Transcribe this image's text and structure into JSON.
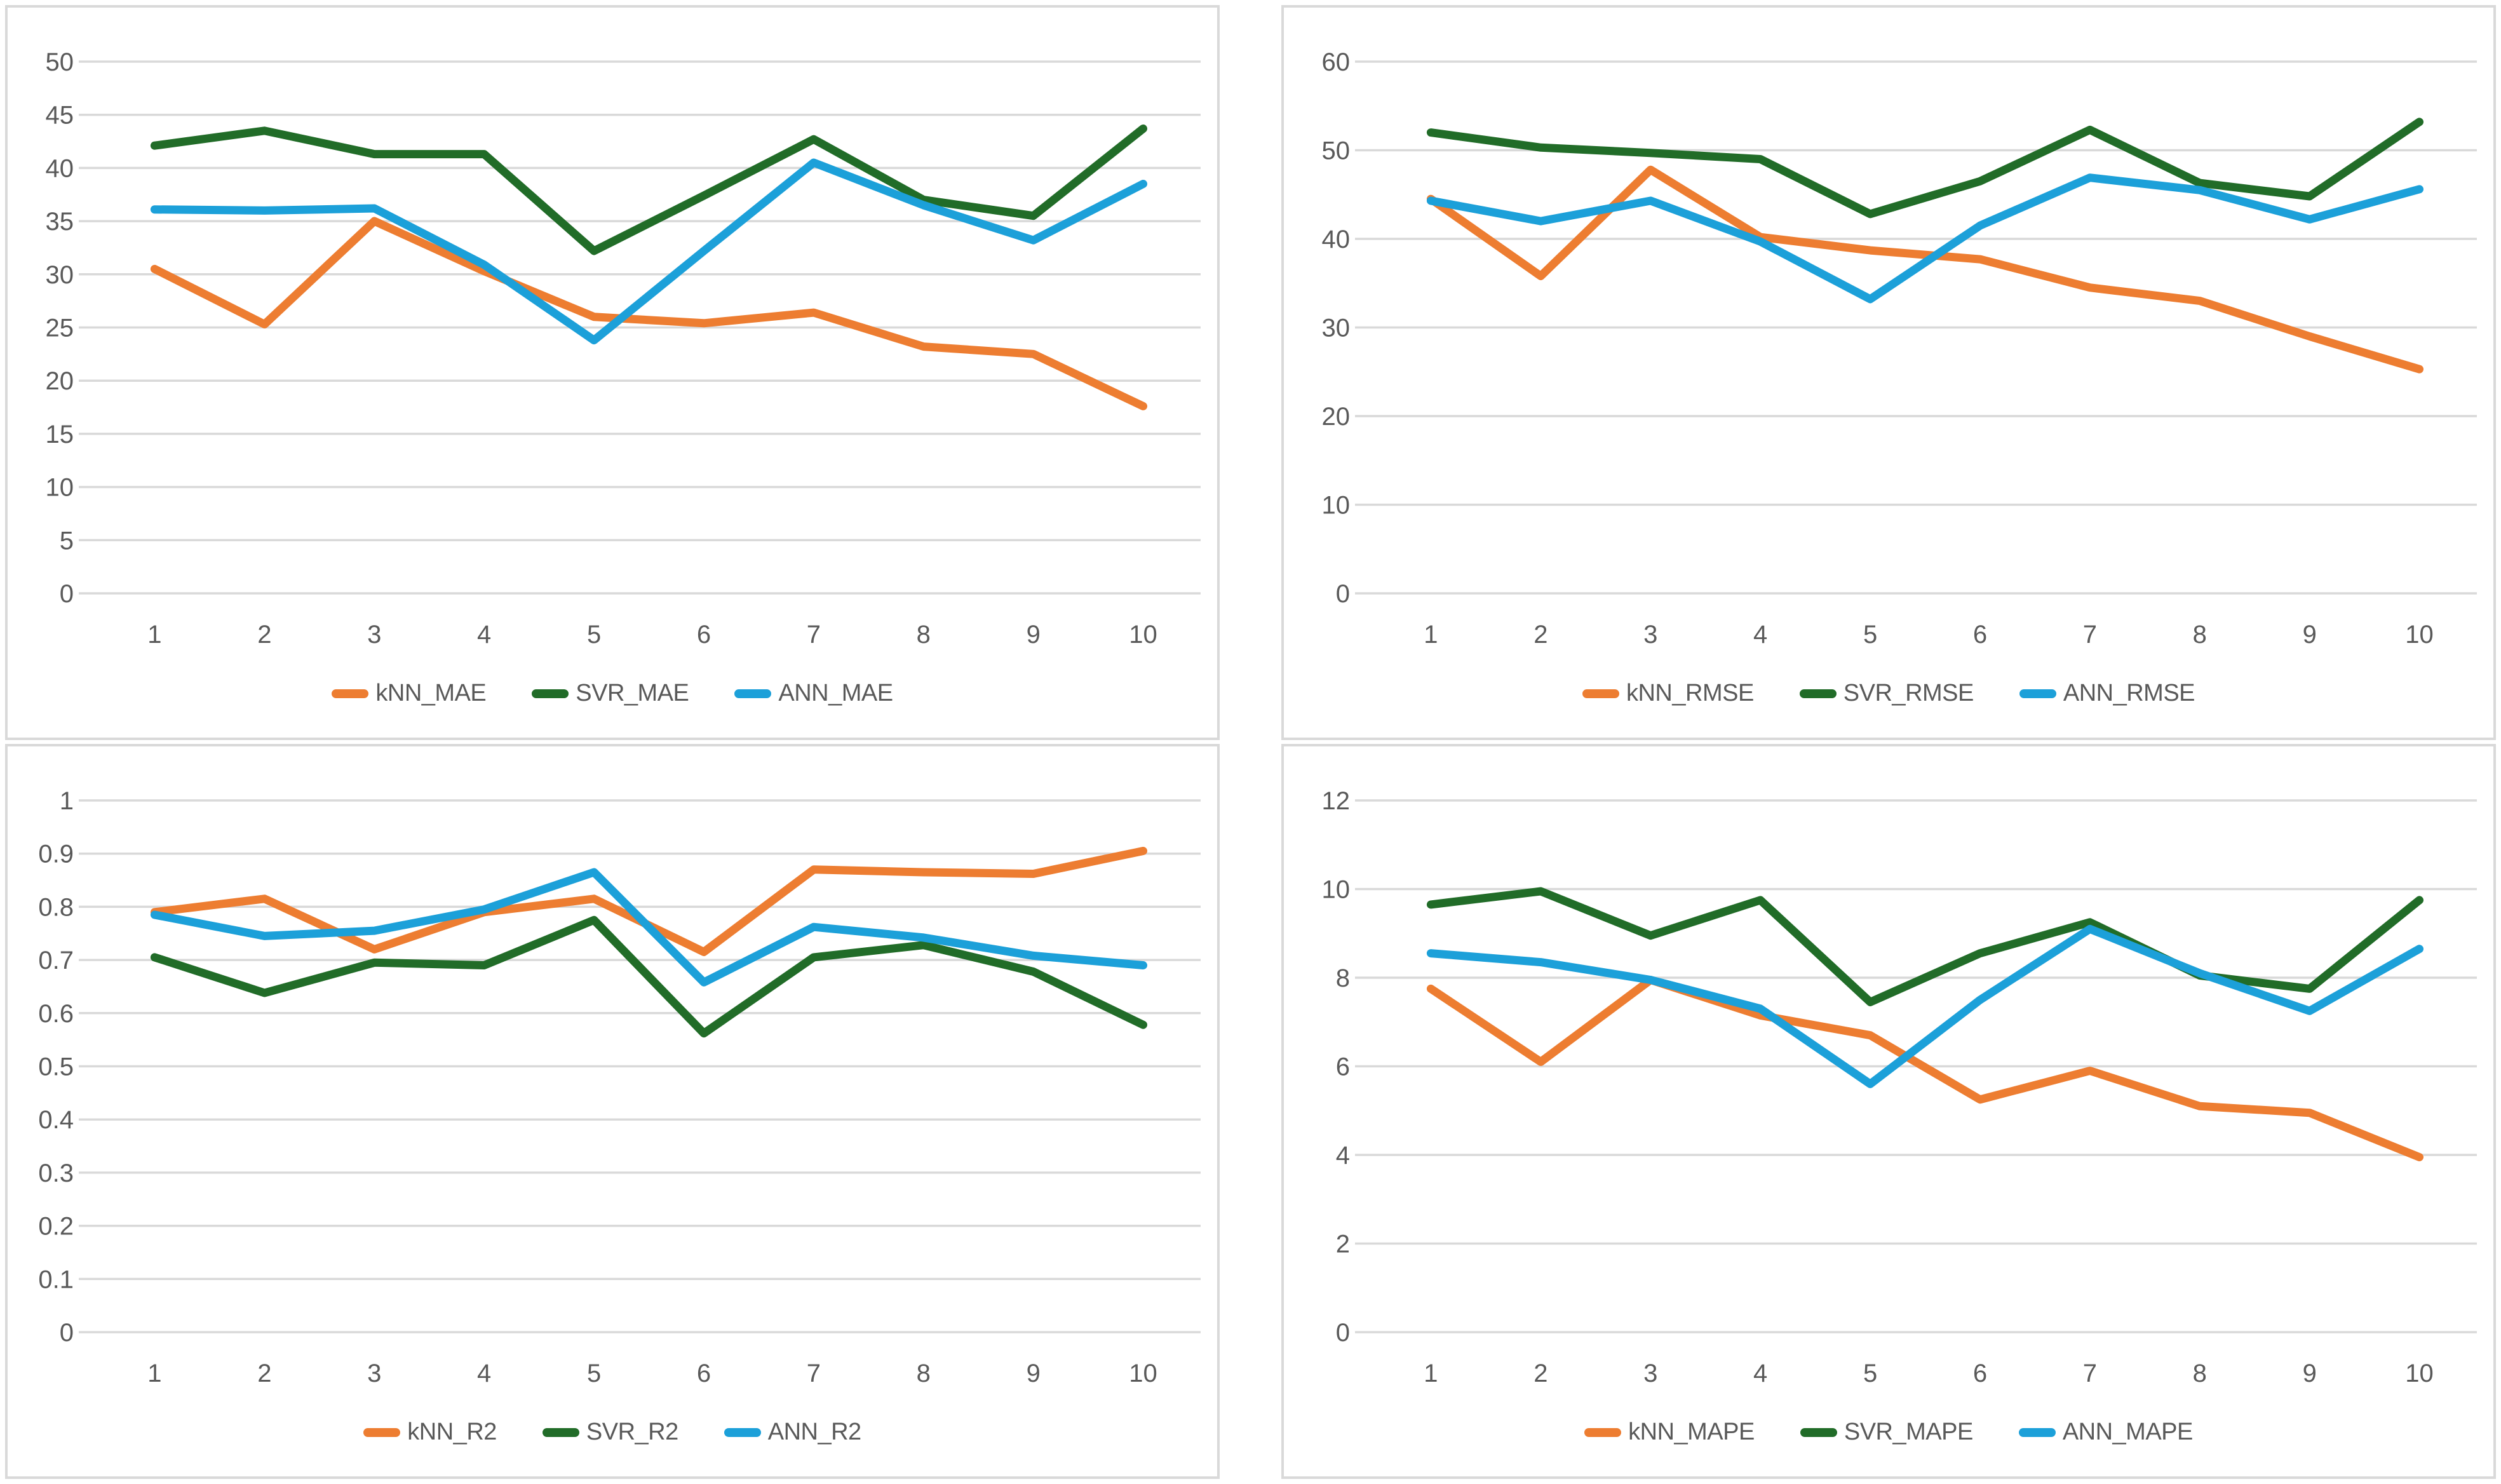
{
  "page": {
    "background": "#FFFFFF",
    "panel_border_color": "#D9D9D9",
    "gridline_color": "#D9D9D9",
    "axis_label_color": "#595959",
    "legend_label_color": "#595959"
  },
  "chart_data": [
    {
      "id": "mae",
      "type": "line",
      "title": "",
      "categories": [
        "1",
        "2",
        "3",
        "4",
        "5",
        "6",
        "7",
        "8",
        "9",
        "10"
      ],
      "ylim": [
        0,
        50
      ],
      "ytick_step": 5,
      "ytick_labels": [
        "0",
        "5",
        "10",
        "15",
        "20",
        "25",
        "30",
        "35",
        "40",
        "45",
        "50"
      ],
      "grid": true,
      "legend_position": "bottom",
      "series": [
        {
          "name": "kNN_MAE",
          "color": "#ED7D31",
          "values": [
            30.5,
            25.3,
            35.0,
            30.3,
            26.0,
            25.4,
            26.4,
            23.2,
            22.5,
            17.6
          ]
        },
        {
          "name": "SVR_MAE",
          "color": "#216C28",
          "values": [
            42.1,
            43.5,
            41.3,
            41.3,
            32.2,
            37.4,
            42.7,
            37.0,
            35.5,
            43.7
          ]
        },
        {
          "name": "ANN_MAE",
          "color": "#1CA0D9",
          "values": [
            36.1,
            36.0,
            36.2,
            30.9,
            23.8,
            32.2,
            40.5,
            36.5,
            33.2,
            38.5
          ]
        }
      ]
    },
    {
      "id": "rmse",
      "type": "line",
      "title": "",
      "categories": [
        "1",
        "2",
        "3",
        "4",
        "5",
        "6",
        "7",
        "8",
        "9",
        "10"
      ],
      "ylim": [
        0,
        60
      ],
      "ytick_step": 10,
      "ytick_labels": [
        "0",
        "10",
        "20",
        "30",
        "40",
        "50",
        "60"
      ],
      "grid": true,
      "legend_position": "bottom",
      "series": [
        {
          "name": "kNN_RMSE",
          "color": "#ED7D31",
          "values": [
            44.5,
            35.8,
            47.8,
            40.2,
            38.7,
            37.7,
            34.5,
            33.0,
            29.0,
            25.3
          ]
        },
        {
          "name": "SVR_RMSE",
          "color": "#216C28",
          "values": [
            52.0,
            50.3,
            49.7,
            49.0,
            42.8,
            46.5,
            52.3,
            46.3,
            44.8,
            53.2
          ]
        },
        {
          "name": "ANN_RMSE",
          "color": "#1CA0D9",
          "values": [
            44.3,
            42.0,
            44.3,
            39.7,
            33.2,
            41.5,
            46.9,
            45.5,
            42.2,
            45.6
          ]
        }
      ]
    },
    {
      "id": "r2",
      "type": "line",
      "title": "",
      "categories": [
        "1",
        "2",
        "3",
        "4",
        "5",
        "6",
        "7",
        "8",
        "9",
        "10"
      ],
      "ylim": [
        0,
        1
      ],
      "ytick_step": 0.1,
      "ytick_labels": [
        "0",
        "0.1",
        "0.2",
        "0.3",
        "0.4",
        "0.5",
        "0.6",
        "0.7",
        "0.8",
        "0.9",
        "1"
      ],
      "grid": true,
      "legend_position": "bottom",
      "series": [
        {
          "name": "kNN_R2",
          "color": "#ED7D31",
          "values": [
            0.79,
            0.815,
            0.72,
            0.79,
            0.815,
            0.715,
            0.87,
            0.865,
            0.862,
            0.905
          ]
        },
        {
          "name": "SVR_R2",
          "color": "#216C28",
          "values": [
            0.705,
            0.638,
            0.695,
            0.69,
            0.775,
            0.562,
            0.705,
            0.728,
            0.678,
            0.578
          ]
        },
        {
          "name": "ANN_R2",
          "color": "#1CA0D9",
          "values": [
            0.785,
            0.745,
            0.755,
            0.795,
            0.865,
            0.658,
            0.762,
            0.742,
            0.708,
            0.69
          ]
        }
      ]
    },
    {
      "id": "mape",
      "type": "line",
      "title": "",
      "categories": [
        "1",
        "2",
        "3",
        "4",
        "5",
        "6",
        "7",
        "8",
        "9",
        "10"
      ],
      "ylim": [
        0,
        12
      ],
      "ytick_step": 2,
      "ytick_labels": [
        "0",
        "2",
        "4",
        "6",
        "8",
        "10",
        "12"
      ],
      "grid": true,
      "legend_position": "bottom",
      "series": [
        {
          "name": "kNN_MAPE",
          "color": "#ED7D31",
          "values": [
            7.75,
            6.1,
            7.95,
            7.15,
            6.7,
            5.25,
            5.9,
            5.1,
            4.95,
            3.95
          ]
        },
        {
          "name": "SVR_MAPE",
          "color": "#216C28",
          "values": [
            9.65,
            9.95,
            8.95,
            9.75,
            7.45,
            8.55,
            9.25,
            8.05,
            7.75,
            9.75
          ]
        },
        {
          "name": "ANN_MAPE",
          "color": "#1CA0D9",
          "values": [
            8.55,
            8.35,
            7.95,
            7.3,
            5.6,
            7.5,
            9.1,
            8.1,
            7.25,
            8.65
          ]
        }
      ]
    }
  ]
}
